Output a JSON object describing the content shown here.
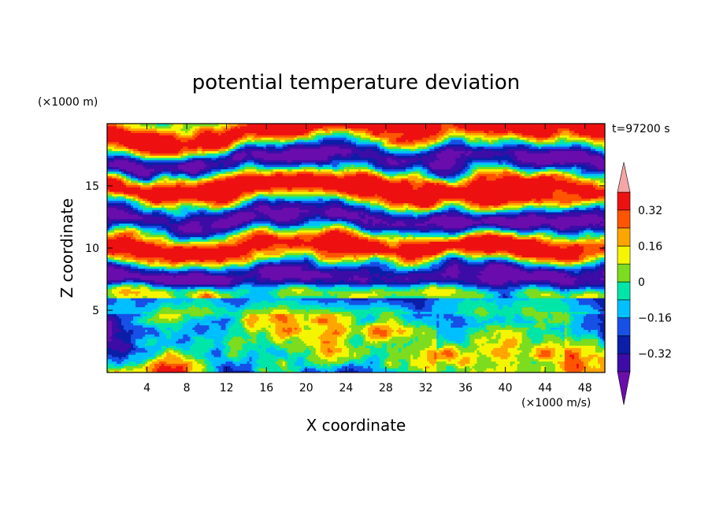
{
  "chart_data": {
    "type": "heatmap",
    "title": "potential temperature deviation",
    "xlabel": "X coordinate",
    "ylabel": "Z coordinate",
    "x_unit": "(×1000 m/s)",
    "y_unit": "(×1000 m)",
    "time_label": "t=97200 s",
    "xlim": [
      0,
      50
    ],
    "ylim": [
      0,
      20
    ],
    "x_ticks": [
      "4",
      "8",
      "12",
      "16",
      "20",
      "24",
      "28",
      "32",
      "36",
      "40",
      "44",
      "48"
    ],
    "y_ticks": [
      "5",
      "10",
      "15"
    ],
    "colorbar": {
      "labels": [
        "0.32",
        "0.16",
        "0",
        "−0.16",
        "−0.32"
      ],
      "label_values": [
        0.32,
        0.16,
        0,
        -0.16,
        -0.32
      ],
      "levels": [
        -0.4,
        -0.32,
        -0.24,
        -0.16,
        -0.08,
        0,
        0.08,
        0.16,
        0.24,
        0.32,
        0.4
      ],
      "colors": [
        "#6a0dad",
        "#3d0ca6",
        "#0a1ea8",
        "#1750e6",
        "#00bfff",
        "#00e6a8",
        "#7ddc1f",
        "#f5f500",
        "#ffa500",
        "#ff5500",
        "#ee1111",
        "#f4a6a6"
      ],
      "extend": "both"
    }
  }
}
